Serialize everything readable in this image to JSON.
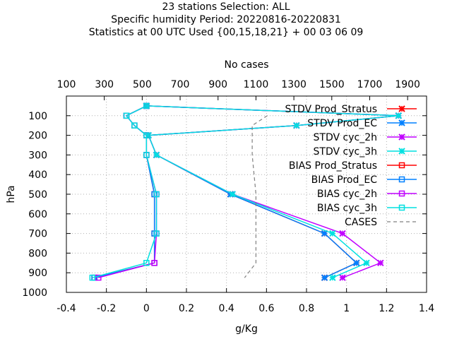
{
  "chart_data": {
    "type": "line",
    "title_lines": [
      "23 stations Selection: ALL",
      "Specific humidity  Period: 20220816-20220831",
      "Statistics at 00 UTC  Used {00,15,18,21} + 00 03 06 09"
    ],
    "xlabel": "g/Kg",
    "ylabel": "hPa",
    "x2label": "No cases",
    "xlim": [
      -0.4,
      1.4
    ],
    "ylim": [
      1000,
      0
    ],
    "x2lim": [
      100,
      2000
    ],
    "xticks": [
      -0.4,
      -0.2,
      0,
      0.2,
      0.4,
      0.6,
      0.8,
      1,
      1.2,
      1.4
    ],
    "xtick_labels": [
      "-0.4",
      "-0.2",
      "0",
      "0.2",
      "0.4",
      "0.6",
      "0.8",
      "1",
      "1.2",
      "1.4"
    ],
    "yticks": [
      100,
      200,
      300,
      400,
      500,
      600,
      700,
      800,
      900,
      1000
    ],
    "ytick_labels": [
      "100",
      "200",
      "300",
      "400",
      "500",
      "600",
      "700",
      "800",
      "900",
      "1000"
    ],
    "x2ticks": [
      100,
      300,
      500,
      700,
      900,
      1100,
      1300,
      1500,
      1700,
      1900
    ],
    "x2tick_labels": [
      "100",
      "300",
      "500",
      "700",
      "900",
      "1100",
      "1300",
      "1500",
      "1700",
      "1900"
    ],
    "grid": true,
    "legend_position": "top-right",
    "series": [
      {
        "name": "STDV Prod_Stratus",
        "color": "#ff0000",
        "marker": "x",
        "y": [
          50,
          100,
          150,
          200,
          300,
          500,
          700,
          850,
          925
        ],
        "x": [
          0.0,
          1.26,
          0.75,
          0.01,
          0.05,
          0.42,
          0.89,
          1.05,
          0.89
        ]
      },
      {
        "name": "STDV Prod_EC",
        "color": "#0080ff",
        "marker": "x",
        "y": [
          50,
          100,
          150,
          200,
          300,
          500,
          700,
          850,
          925
        ],
        "x": [
          0.0,
          1.26,
          0.75,
          0.01,
          0.05,
          0.42,
          0.89,
          1.05,
          0.89
        ]
      },
      {
        "name": "STDV cyc_2h",
        "color": "#c000ff",
        "marker": "x",
        "y": [
          50,
          100,
          150,
          200,
          300,
          500,
          700,
          850,
          925
        ],
        "x": [
          0.0,
          1.26,
          0.75,
          0.01,
          0.05,
          0.43,
          0.98,
          1.17,
          0.98
        ]
      },
      {
        "name": "STDV cyc_3h",
        "color": "#00e0e0",
        "marker": "x",
        "y": [
          50,
          100,
          150,
          200,
          300,
          500,
          700,
          850,
          925
        ],
        "x": [
          0.0,
          1.26,
          0.75,
          0.01,
          0.05,
          0.43,
          0.93,
          1.1,
          0.93
        ]
      },
      {
        "name": "BIAS Prod_Stratus",
        "color": "#ff0000",
        "marker": "square",
        "y": [
          50,
          100,
          150,
          200,
          300,
          500,
          700,
          850,
          925
        ],
        "x": [
          0.0,
          -0.1,
          -0.06,
          0.0,
          0.0,
          0.04,
          0.04,
          0.04,
          -0.26
        ]
      },
      {
        "name": "BIAS Prod_EC",
        "color": "#0080ff",
        "marker": "square",
        "y": [
          50,
          100,
          150,
          200,
          300,
          500,
          700,
          850,
          925
        ],
        "x": [
          0.0,
          -0.1,
          -0.06,
          0.0,
          0.0,
          0.04,
          0.04,
          0.04,
          -0.26
        ]
      },
      {
        "name": "BIAS cyc_2h",
        "color": "#c000ff",
        "marker": "square",
        "y": [
          50,
          100,
          150,
          200,
          300,
          500,
          700,
          850,
          925
        ],
        "x": [
          0.0,
          -0.1,
          -0.06,
          0.0,
          0.0,
          0.05,
          0.05,
          0.04,
          -0.24
        ]
      },
      {
        "name": "BIAS cyc_3h",
        "color": "#00e0e0",
        "marker": "square",
        "y": [
          50,
          100,
          150,
          200,
          300,
          500,
          700,
          850,
          925
        ],
        "x": [
          0.0,
          -0.1,
          -0.06,
          0.0,
          0.0,
          0.05,
          0.05,
          0.0,
          -0.27
        ]
      },
      {
        "name": "CASES",
        "color": "#808080",
        "dashed": true,
        "axis": "x2",
        "y": [
          100,
          150,
          200,
          300,
          500,
          700,
          850,
          925
        ],
        "x": [
          1160,
          1080,
          1080,
          1080,
          1100,
          1100,
          1100,
          1040
        ]
      }
    ]
  }
}
